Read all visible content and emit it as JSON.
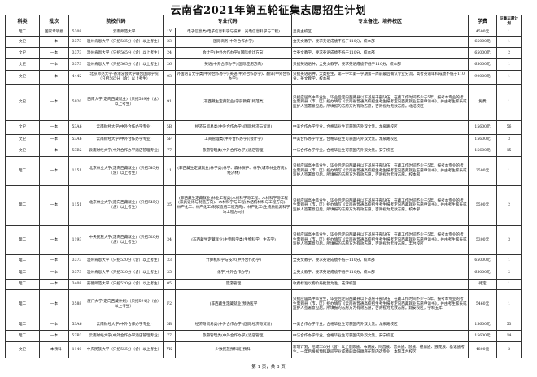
{
  "title": "云南省2021年第五轮征集志愿招生计划",
  "columns": [
    "科类",
    "批次",
    "院校代码",
    "专业代码",
    "专业备注、培养校区",
    "学费",
    "征集志愿计划"
  ],
  "rows": [
    {
      "kelei": "理工",
      "pici": "国家专项批",
      "code": "5308",
      "school": "云南师范大学",
      "mcode": "1Y",
      "major": "电子信息类(电子信息科学与技术、光电信息科学与工程)",
      "note": "呈贡主校区",
      "fee": "4500元",
      "plan": "1"
    },
    {
      "kelei": "文史",
      "pici": "一本",
      "code": "3373",
      "school": "温州肯恩大学（只招565分（含）以上考生）",
      "mcode": "23",
      "major": "国际商务(中外合作办学)",
      "note": "全英文教学，要求英语成绩不低于110分，校本部",
      "fee": "65000元",
      "plan": "1"
    },
    {
      "kelei": "文史",
      "pici": "一本",
      "code": "3373",
      "school": "温州肯恩大学（只招565分（含）以上考生）",
      "mcode": "24",
      "major": "会计学(中外合作办学)(国际会计方向)",
      "note": "全英文教学，要求英语成绩不低于110分，校本部",
      "fee": "65000元",
      "plan": "2"
    },
    {
      "kelei": "文史",
      "pici": "一本",
      "code": "3373",
      "school": "温州肯恩大学（只招565分（含）以上考生）",
      "mcode": "26",
      "major": "英语(中外合作办学)(国际应用方向)",
      "note": "只招英语语种，全英文教学，要求英语成绩不低于110分，校本部",
      "fee": "65000元",
      "plan": "1"
    },
    {
      "kelei": "文史",
      "pici": "一本",
      "code": "4442",
      "school": "北京师范大学-香港浸会大学联合国际学院（只招565分（含）以上考生）",
      "mcode": "03",
      "major": "外国语言文学类(中外合作办学)(英语(中外合作办学)、翻译(中外合作办学))",
      "note": "只招英语语种，大类招生，第一学年第一学期第十周前最后确认专业分流，高考英语单科成绩不低于110分，英文教学，校本部",
      "fee": "90000元",
      "plan": "1"
    },
    {
      "kelei": "文史",
      "pici": "一本",
      "code": "5020",
      "school": "西南大学(定向西藏就业)（只招589分（含）以上考生）",
      "mcode": "91",
      "major": "(非西藏生定藏就业)学前教育(师范类)",
      "note": "只招应届高中毕业生，毕业后定向西藏县以下基层干部队伍，在藏工作时间不少于5年。报考本专业的考生需到县（市、区）招办填写《云南省普通高校招生考生报考定向西藏就业志愿申请书》，并由考生家长或监护人签署意见后，所填报的志愿方为有效志愿，否则视为无效志愿。北碚校区",
      "fee": "免费",
      "plan": "1"
    },
    {
      "kelei": "文史",
      "pici": "一本",
      "code": "53A6",
      "school": "云南财经大学(中外合作办学专业)",
      "mcode": "5B",
      "major": "经济与贸易类(中外合作办学)(国际经济与贸易)",
      "note": "中美合作办学专业，合格毕业生可获国内外双文凭。龙泉路校区",
      "fee": "15600元",
      "plan": "56"
    },
    {
      "kelei": "文史",
      "pici": "一本",
      "code": "53A6",
      "school": "云南财经大学(中外合作办学专业)",
      "mcode": "5F",
      "major": "工商管理类(中外合作办学)(会计学)",
      "note": "中美合作办学专业，合格毕业生可获国内外双文凭。龙泉路校区",
      "fee": "15600元",
      "plan": "3"
    },
    {
      "kelei": "文史",
      "pici": "一本",
      "code": "53B2",
      "school": "云南财经大学(中外合作办学酒店管理专业)",
      "mcode": "77",
      "major": "旅游管理类(中外合作办学)(酒店管理)",
      "note": "中法合作办学专业，合格毕业生可获国内外双文凭。安宁校区",
      "fee": "15600元",
      "plan": "15"
    },
    {
      "kelei": "理工",
      "pici": "一本",
      "code": "1151",
      "school": "北京林业大学(定向西藏就业)（只招545分（含）以上考生）",
      "mcode": "11",
      "major": "(非西藏生定藏就业)林学类(林学、森林保护、林学(城市林业方向)、经济林)",
      "note": "只招应届高中毕业生，毕业后定向西藏县以下基层干部队伍，在藏工作时间不少于5年。报考本专业的考生需到县（市、区）招办填写《云南省普通高校招生考生报考定向西藏就业志愿申请书》，并由考生家长或监护人签署意见后，所填报的志愿方为有效志愿，否则视为无效志愿。校本部",
      "fee": "2500元",
      "plan": "1"
    },
    {
      "kelei": "理工",
      "pici": "一本",
      "code": "1151",
      "school": "北京林业大学(定向西藏就业)（只招545分（含）以上考生）",
      "mcode": "35",
      "major": "(非西藏生定藏就业)林业工程类(木材科学与工程、木材科学与工程(家具设计与制造方向)、木材科学与工程(木结构材料与工程方向)、林产化工、林产化工(制浆造纸工程方向)、林产化工(生物质能源科学与工程方向))",
      "note": "只招应届高中毕业生，毕业后定向西藏县以下基层干部队伍，在藏工作时间不少于5年。报考本专业的考生需到县（市、区）招办填写《云南省普通高校招生考生报考定向西藏就业志愿申请书》，并由考生家长或监护人签署意见后，所填报的志愿方为有效志愿，否则视为无效志愿。校本部",
      "fee": "5500元",
      "plan": "2"
    },
    {
      "kelei": "理工",
      "pici": "一本",
      "code": "1193",
      "school": "中央民族大学(定向西藏就业)（只招520分（含）以上考生）",
      "mcode": "34",
      "major": "(非西藏生定藏就业)生物科学类(生物科学、生态学)",
      "note": "只招应届高中毕业生，毕业后定向西藏县以下基层干部队伍，在藏工作时间不少于5年。报考本专业的考生需到县（市、区）招办填写《云南省普通高校招生考生报考定向西藏就业志愿申请书》，并由考生家长或监护人签署意见后，所填报的志愿方为有效志愿，否则视为无效志愿。丰台校区",
      "fee": "5300元",
      "plan": "3"
    },
    {
      "kelei": "理工",
      "pici": "一本",
      "code": "3373",
      "school": "温州肯恩大学（只招520分（含）以上考生）",
      "mcode": "33",
      "major": "计算机科学与技术(中外合作办学)",
      "note": "全英文教学，要求英语成绩不低于110分，校本部",
      "fee": "65000元",
      "plan": "1"
    },
    {
      "kelei": "理工",
      "pici": "一本",
      "code": "3373",
      "school": "温州肯恩大学（只招520分（含）以上考生）",
      "mcode": "35",
      "major": "化学(中外合作办学)",
      "note": "全英文教学，要求英语成绩不低于110分，校本部",
      "fee": "65000元",
      "plan": "2"
    },
    {
      "kelei": "理工",
      "pici": "一本",
      "code": "3408",
      "school": "安徽师范大学（只招520分（含）以上考生）",
      "mcode": "05",
      "major": "旅游管理",
      "note": "收费标准以物价局批复为准，花津校区",
      "fee": "待定",
      "plan": "1"
    },
    {
      "kelei": "理工",
      "pici": "一本",
      "code": "3588",
      "school": "厦门大学(定向西藏计划)（只招594分（含）以上考生）",
      "mcode": "F2",
      "major": "(非西藏生定藏就业)预防医学",
      "note": "只招应届高中毕业生，毕业后定向西藏县以下基层干部队伍，在藏工作时间不少于5年。报考本专业的考生需到县（市、区）招办填写《云南省普通高校招生考生报考定向西藏就业志愿申请书》，并由考生家长或监护人签署意见后，所填报的志愿方为有效志愿，否则视为无效志愿。翔安校区，学制五年",
      "fee": "5460元",
      "plan": "1"
    },
    {
      "kelei": "理工",
      "pici": "一本",
      "code": "53A6",
      "school": "云南财经大学(中外合作办学专业)",
      "mcode": "5B",
      "major": "经济与贸易类(中外合作办学)(国际经济与贸易)",
      "note": "中美合作办学专业，合格毕业生可获国内外双文凭。龙泉路校区",
      "fee": "15600元",
      "plan": "53"
    },
    {
      "kelei": "理工",
      "pici": "一本",
      "code": "53B2",
      "school": "云南财经大学(中外合作办学酒店管理专业)",
      "mcode": "77",
      "major": "旅游管理类(中外合作办学)(酒店管理)",
      "note": "中法合作办学专业，合格毕业生可获国内外双文凭。安宁校区",
      "fee": "15600元",
      "plan": "14"
    },
    {
      "kelei": "文史",
      "pici": "一本预科",
      "code": "1140",
      "school": "中央民族大学（只招555分（含）以上考生）",
      "mcode": "YK",
      "major": "少数民族预科班(预科)",
      "note": "新增计划，招收555分（含）以上景颇族、布朗族、阿昌族、普米族、怒族、德昂族、独龙族、基诺族考生。一年后根据预科期间学业成绩的高低顺序在院内选专业，本院丰台校区",
      "fee": "4800元",
      "plan": "3"
    }
  ],
  "footer": "第 1 页，共 8 页"
}
